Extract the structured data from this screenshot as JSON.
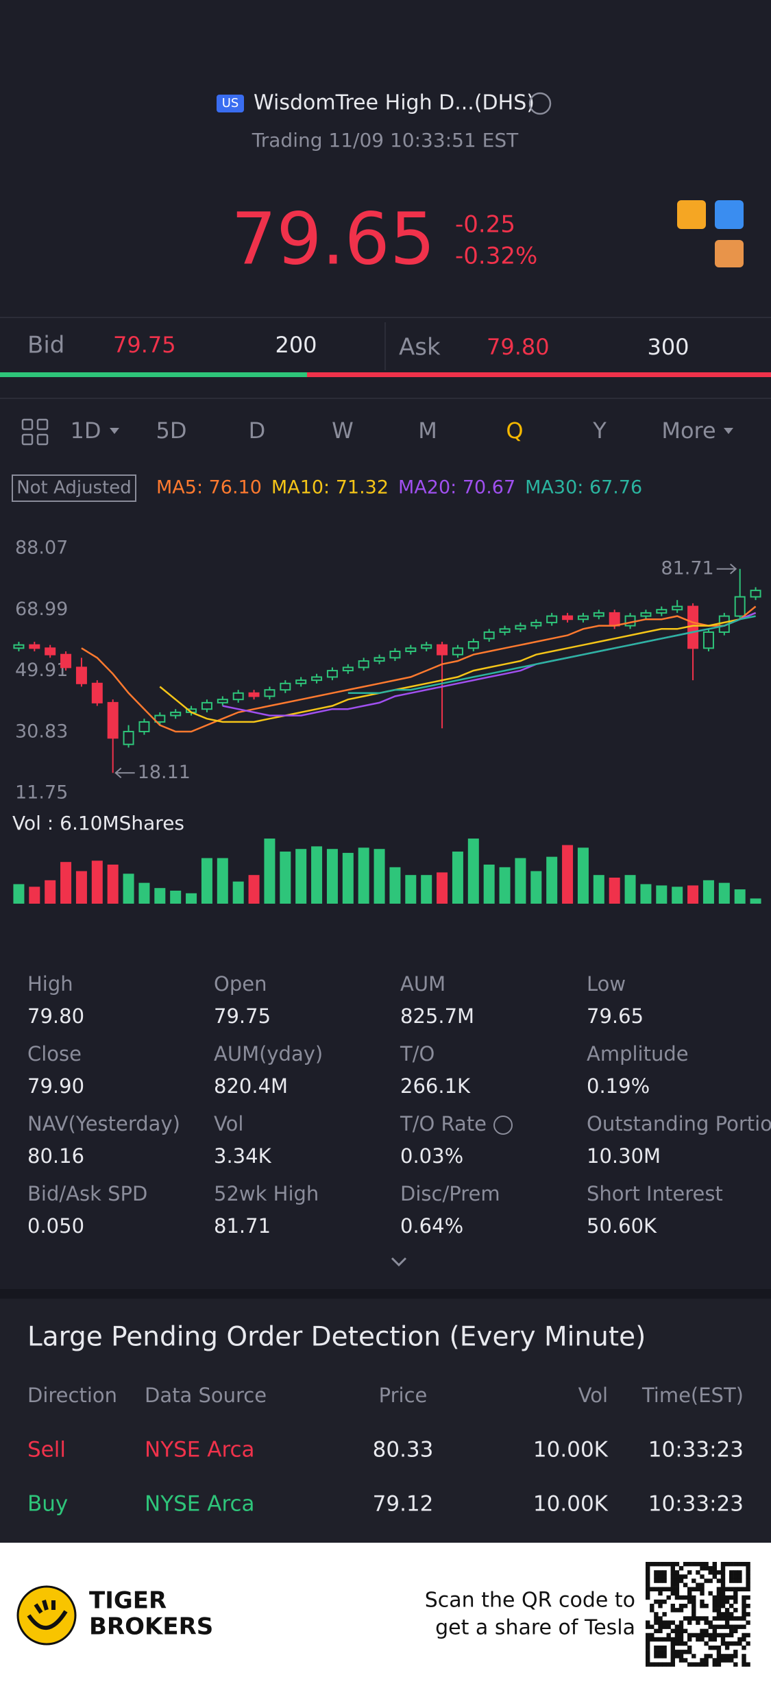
{
  "header": {
    "market_badge": "US",
    "name": "WisdomTree High D...(DHS)",
    "status": "Trading 11/09 10:33:51 EST"
  },
  "quote": {
    "price": "79.65",
    "change": "-0.25",
    "change_pct": "-0.32%"
  },
  "bid_ask": {
    "bid_label": "Bid",
    "bid_price": "79.75",
    "bid_size": "200",
    "ask_label": "Ask",
    "ask_price": "79.80",
    "ask_size": "300"
  },
  "periods": {
    "tabs": [
      "1D",
      "5D",
      "D",
      "W",
      "M",
      "Q",
      "Y",
      "More"
    ],
    "selected": 5
  },
  "chart_data": {
    "type": "candlestick",
    "adjust_label": "Not Adjusted",
    "ylim": [
      11.75,
      88.07
    ],
    "yticks": [
      88.07,
      68.99,
      49.91,
      30.83,
      11.75
    ],
    "up_color": "#2ec57a",
    "down_color": "#f0324b",
    "open": [
      57,
      58,
      57,
      55,
      51,
      46,
      40,
      27,
      31,
      34,
      36,
      37,
      38,
      40,
      41,
      43,
      42,
      44,
      46,
      47,
      48,
      50,
      51,
      53,
      54,
      56,
      57,
      58,
      55,
      57,
      60,
      62,
      63,
      64,
      65,
      67,
      66,
      67,
      68,
      64,
      67,
      68,
      69,
      70,
      57,
      62,
      67,
      73
    ],
    "close": [
      58,
      57,
      55,
      51,
      46,
      40,
      29,
      31,
      34,
      36,
      37,
      38,
      40,
      41,
      43,
      42,
      44,
      46,
      47,
      48,
      50,
      51,
      53,
      54,
      56,
      57,
      58,
      55,
      57,
      59,
      62,
      63,
      64,
      65,
      67,
      66,
      67,
      68,
      64,
      67,
      68,
      69,
      70,
      57,
      62,
      67,
      73,
      75
    ],
    "high": [
      59,
      59,
      58,
      56,
      54,
      47,
      41,
      33,
      35,
      37,
      38,
      39,
      41,
      42,
      44,
      44,
      45,
      47,
      48,
      49,
      51,
      52,
      54,
      55,
      57,
      58,
      59,
      59,
      58,
      60,
      63,
      64,
      65,
      66,
      68,
      68,
      68,
      69,
      69,
      68,
      69,
      70,
      72,
      71,
      63,
      68,
      81.71,
      76
    ],
    "low": [
      56,
      56,
      54,
      50,
      45,
      39,
      18.11,
      26,
      30,
      33,
      35,
      36,
      37,
      39,
      40,
      41,
      41,
      43,
      45,
      46,
      47,
      49,
      50,
      52,
      53,
      55,
      56,
      32,
      54,
      56,
      59,
      61,
      62,
      63,
      64,
      65,
      65,
      66,
      63,
      63,
      66,
      67,
      68,
      47,
      56,
      61,
      66,
      72
    ],
    "series": [
      {
        "name": "MA5: 76.10",
        "color": "#ff7a2f",
        "values": [
          null,
          null,
          null,
          null,
          57,
          54,
          49,
          43,
          38,
          33,
          31,
          31,
          33,
          35,
          37,
          38,
          39,
          40,
          41,
          42,
          43,
          44,
          45,
          46,
          47,
          48,
          50,
          52,
          53,
          55,
          56,
          57,
          58,
          59,
          60,
          61,
          63,
          64,
          64,
          65,
          66,
          66,
          67,
          65,
          64,
          64,
          66,
          70
        ]
      },
      {
        "name": "MA10: 71.32",
        "color": "#f5c518",
        "values": [
          null,
          null,
          null,
          null,
          null,
          null,
          null,
          null,
          null,
          45,
          41,
          37,
          35,
          34,
          34,
          34,
          35,
          36,
          37,
          38,
          39,
          41,
          42,
          43,
          44,
          45,
          46,
          47,
          48,
          50,
          51,
          52,
          53,
          55,
          56,
          57,
          58,
          59,
          60,
          61,
          62,
          63,
          63,
          64,
          64,
          65,
          66,
          68
        ]
      },
      {
        "name": "MA20: 70.67",
        "color": "#a050f0",
        "values": [
          null,
          null,
          null,
          null,
          null,
          null,
          null,
          null,
          null,
          null,
          null,
          null,
          null,
          39,
          38,
          37,
          36,
          36,
          36,
          37,
          38,
          38,
          39,
          40,
          42,
          43,
          44,
          45,
          46,
          47,
          48,
          49,
          50,
          52,
          53,
          54,
          55,
          56,
          57,
          58,
          59,
          60,
          61,
          62,
          63,
          64,
          66,
          68
        ]
      },
      {
        "name": "MA30: 67.76",
        "color": "#2bb5a0",
        "values": [
          null,
          null,
          null,
          null,
          null,
          null,
          null,
          null,
          null,
          null,
          null,
          null,
          null,
          null,
          null,
          null,
          null,
          null,
          null,
          null,
          null,
          43,
          43,
          43,
          44,
          44,
          45,
          46,
          47,
          48,
          49,
          50,
          51,
          52,
          53,
          54,
          55,
          56,
          57,
          58,
          59,
          60,
          61,
          62,
          63,
          64,
          66,
          67
        ]
      }
    ],
    "high_marker": 81.71,
    "low_marker": 18.11,
    "volume_label": "Vol : 6.10MShares",
    "volume": [
      1.5,
      1.3,
      1.8,
      3.2,
      2.5,
      3.3,
      3.0,
      2.3,
      1.6,
      1.2,
      1.0,
      0.8,
      3.5,
      3.5,
      1.7,
      2.2,
      5.0,
      4.0,
      4.2,
      4.4,
      4.2,
      3.9,
      4.3,
      4.2,
      2.8,
      2.2,
      2.2,
      2.4,
      4.0,
      5.0,
      3.0,
      2.8,
      3.5,
      2.5,
      3.6,
      4.5,
      4.3,
      2.2,
      2.0,
      2.2,
      1.5,
      1.4,
      1.3,
      1.4,
      1.8,
      1.6,
      1.1,
      0.4
    ]
  },
  "stats": [
    {
      "label": "High",
      "value": "79.80"
    },
    {
      "label": "Open",
      "value": "79.75"
    },
    {
      "label": "AUM",
      "value": "825.7M"
    },
    {
      "label": "Low",
      "value": "79.65"
    },
    {
      "label": "Close",
      "value": "79.90"
    },
    {
      "label": "AUM(yday)",
      "value": "820.4M"
    },
    {
      "label": "T/O",
      "value": "266.1K"
    },
    {
      "label": "Amplitude",
      "value": "0.19%"
    },
    {
      "label": "NAV(Yesterday)",
      "value": "80.16"
    },
    {
      "label": "Vol",
      "value": "3.34K"
    },
    {
      "label": "T/O Rate",
      "value": "0.03%"
    },
    {
      "label": "Outstanding Portion",
      "value": "10.30M"
    },
    {
      "label": "Bid/Ask SPD",
      "value": "0.050"
    },
    {
      "label": "52wk High",
      "value": "81.71"
    },
    {
      "label": "Disc/Prem",
      "value": "0.64%"
    },
    {
      "label": "Short Interest",
      "value": "50.60K"
    }
  ],
  "pending_orders": {
    "title": "Large Pending Order Detection (Every Minute)",
    "columns": [
      "Direction",
      "Data Source",
      "Price",
      "Vol",
      "Time(EST)"
    ],
    "rows": [
      [
        "Sell",
        "NYSE Arca",
        "80.33",
        "10.00K",
        "10:33:23"
      ],
      [
        "Buy",
        "NYSE Arca",
        "79.12",
        "10.00K",
        "10:33:23"
      ]
    ]
  },
  "footer": {
    "brand": [
      "TIGER",
      "BROKERS"
    ],
    "cta": [
      "Scan the QR code to",
      "get a share of Tesla"
    ]
  }
}
